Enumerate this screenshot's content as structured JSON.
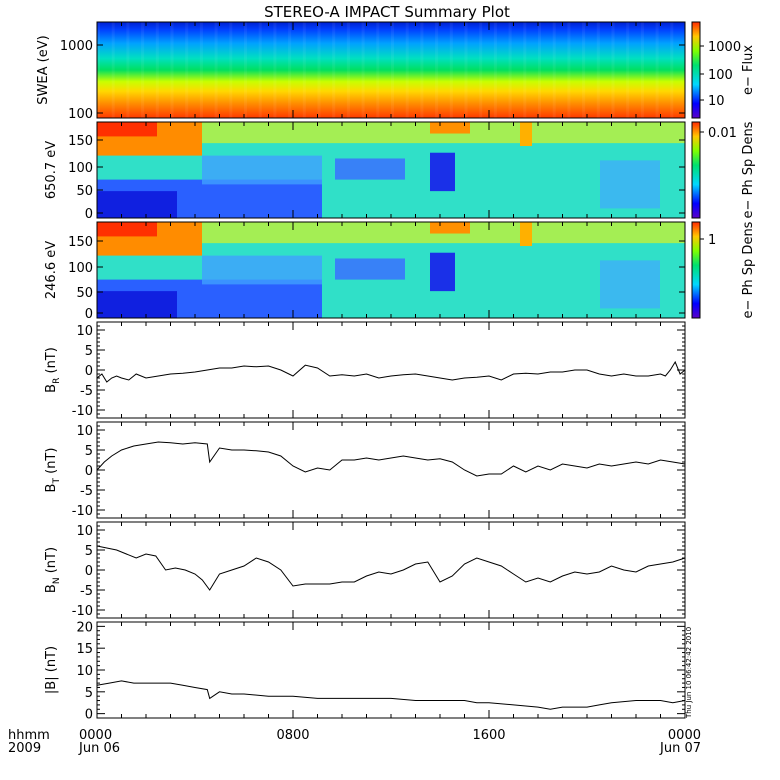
{
  "chart_data": {
    "type": "line",
    "title": "STEREO-A IMPACT Summary Plot",
    "time_axis": {
      "range_hours": [
        0,
        24
      ],
      "ticks": [
        {
          "hour": 0,
          "line1": "0000",
          "line2": "Jun 06"
        },
        {
          "hour": 8,
          "line1": "0800",
          "line2": ""
        },
        {
          "hour": 16,
          "line1": "1600",
          "line2": ""
        },
        {
          "hour": 24,
          "line1": "0000",
          "line2": "Jun 07"
        }
      ],
      "corner_label_line1": "hhmm",
      "corner_label_line2": "2009"
    },
    "timestamp": "Thu Jun 10 06:42:42 2010",
    "spectrograms": [
      {
        "ylabel": "SWEA (eV)",
        "yscale": "log",
        "yticks": [
          "1000",
          "100"
        ],
        "colorbar_label": "e− Flux",
        "colorbar_ticks": [
          "1000",
          "100",
          "10"
        ]
      },
      {
        "ylabel": "650.7 eV",
        "yscale": "linear",
        "yticks": [
          "150",
          "100",
          "50",
          "0"
        ],
        "colorbar_label": "e− Ph Sp Dens",
        "colorbar_ticks": [
          "0.01"
        ]
      },
      {
        "ylabel": "246.6 eV",
        "yscale": "linear",
        "yticks": [
          "150",
          "100",
          "50",
          "0"
        ],
        "colorbar_label": "e− Ph Sp Dens",
        "colorbar_ticks": [
          "1"
        ]
      }
    ],
    "series": [
      {
        "name": "BR",
        "ylabel_main": "B",
        "ylabel_sub": "R",
        "ylabel_unit": "(nT)",
        "ylim": [
          -12,
          12
        ],
        "yticks": [
          "10",
          "5",
          "0",
          "-5",
          "-10"
        ],
        "x": [
          0,
          0.2,
          0.4,
          0.6,
          0.8,
          1,
          1.3,
          1.6,
          2,
          2.5,
          3,
          3.5,
          4,
          4.5,
          5,
          5.5,
          6,
          6.5,
          7,
          7.5,
          8,
          8.5,
          9,
          9.5,
          10,
          10.5,
          11,
          11.5,
          12,
          12.5,
          13,
          13.5,
          14,
          14.5,
          15,
          15.5,
          16,
          16.5,
          17,
          17.5,
          18,
          18.5,
          19,
          19.5,
          20,
          20.5,
          21,
          21.5,
          22,
          22.5,
          23,
          23.2,
          23.4,
          23.6,
          23.8,
          24
        ],
        "values": [
          -2,
          -1,
          -3,
          -2,
          -1.5,
          -2,
          -2.5,
          -1,
          -2,
          -1.5,
          -1,
          -0.8,
          -0.5,
          0,
          0.5,
          0.5,
          1,
          0.8,
          1,
          0,
          -1.5,
          1.2,
          0.5,
          -1.5,
          -1.2,
          -1.5,
          -1,
          -2,
          -1.5,
          -1.2,
          -1,
          -1.5,
          -2,
          -2.5,
          -2,
          -1.8,
          -1.5,
          -2.5,
          -1,
          -0.8,
          -1,
          -0.5,
          -0.5,
          0,
          0,
          -1,
          -1.5,
          -1,
          -1.5,
          -1.5,
          -1,
          -1.5,
          0,
          2,
          -1,
          0
        ]
      },
      {
        "name": "BT",
        "ylabel_main": "B",
        "ylabel_sub": "T",
        "ylabel_unit": "(nT)",
        "ylim": [
          -12,
          12
        ],
        "yticks": [
          "10",
          "5",
          "0",
          "-5",
          "-10"
        ],
        "x": [
          0,
          0.3,
          0.6,
          1,
          1.5,
          2,
          2.5,
          3,
          3.5,
          4,
          4.5,
          4.6,
          5,
          5.5,
          6,
          6.5,
          7,
          7.5,
          8,
          8.5,
          9,
          9.5,
          10,
          10.5,
          11,
          11.5,
          12,
          12.5,
          13,
          13.5,
          14,
          14.5,
          15,
          15.5,
          16,
          16.5,
          17,
          17.5,
          18,
          18.5,
          19,
          19.5,
          20,
          20.5,
          21,
          21.5,
          22,
          22.5,
          23,
          23.5,
          24
        ],
        "values": [
          0,
          2,
          3.5,
          5,
          6,
          6.5,
          7,
          6.8,
          6.5,
          6.8,
          6.5,
          2,
          5.5,
          5,
          5,
          4.8,
          4.5,
          3.5,
          1,
          -0.5,
          0.5,
          0,
          2.5,
          2.5,
          3,
          2.5,
          3,
          3.5,
          3,
          2.5,
          2.8,
          2,
          0,
          -1.5,
          -1,
          -1,
          1,
          -0.5,
          1,
          0,
          1.5,
          1,
          0.5,
          1.5,
          1,
          1.5,
          2,
          1.5,
          2.5,
          2,
          1.5
        ]
      },
      {
        "name": "BN",
        "ylabel_main": "B",
        "ylabel_sub": "N",
        "ylabel_unit": "(nT)",
        "ylim": [
          -12,
          12
        ],
        "yticks": [
          "10",
          "5",
          "0",
          "-5",
          "-10"
        ],
        "x": [
          0,
          0.4,
          0.8,
          1.2,
          1.6,
          2,
          2.4,
          2.8,
          3.2,
          3.6,
          4,
          4.3,
          4.6,
          5,
          5.5,
          6,
          6.5,
          7,
          7.5,
          8,
          8.5,
          9,
          9.5,
          10,
          10.5,
          11,
          11.5,
          12,
          12.5,
          13,
          13.5,
          14,
          14.5,
          15,
          15.5,
          16,
          16.5,
          17,
          17.5,
          18,
          18.5,
          19,
          19.5,
          20,
          20.5,
          21,
          21.5,
          22,
          22.5,
          23,
          23.5,
          24
        ],
        "values": [
          6,
          5.5,
          5,
          4,
          3,
          4,
          3.5,
          0,
          0.5,
          0,
          -1,
          -2.5,
          -5,
          -1,
          0,
          1,
          3,
          2,
          0,
          -4,
          -3.5,
          -3.5,
          -3.5,
          -3,
          -3,
          -1.5,
          -0.5,
          -1,
          0,
          1.5,
          2,
          -3,
          -1.5,
          1.5,
          3,
          2,
          1,
          -1,
          -3,
          -2,
          -3,
          -1.5,
          -0.5,
          -1,
          -0.5,
          1,
          0,
          -0.5,
          1,
          1.5,
          2,
          3
        ]
      },
      {
        "name": "|B|",
        "ylabel_main": "|B|",
        "ylabel_sub": "",
        "ylabel_unit": "(nT)",
        "ylim": [
          -1,
          21
        ],
        "yticks": [
          "20",
          "15",
          "10",
          "5",
          "0"
        ],
        "x": [
          0,
          0.5,
          1,
          1.5,
          2,
          2.5,
          3,
          3.5,
          4,
          4.5,
          4.6,
          5,
          5.5,
          6,
          7,
          8,
          9,
          10,
          11,
          12,
          13,
          14,
          14.5,
          15,
          15.5,
          16,
          17,
          18,
          18.5,
          19,
          19.5,
          20,
          20.5,
          21,
          22,
          23,
          23.5,
          24
        ],
        "values": [
          6.5,
          7,
          7.5,
          7,
          7,
          7,
          7,
          6.5,
          6,
          5.5,
          3.5,
          5,
          4.5,
          4.5,
          4,
          4,
          3.5,
          3.5,
          3.5,
          3.5,
          3,
          3,
          3,
          3,
          2.5,
          2.5,
          2,
          1.5,
          1,
          1.5,
          1.5,
          1.5,
          2,
          2.5,
          3,
          3,
          2.5,
          3
        ]
      }
    ]
  }
}
